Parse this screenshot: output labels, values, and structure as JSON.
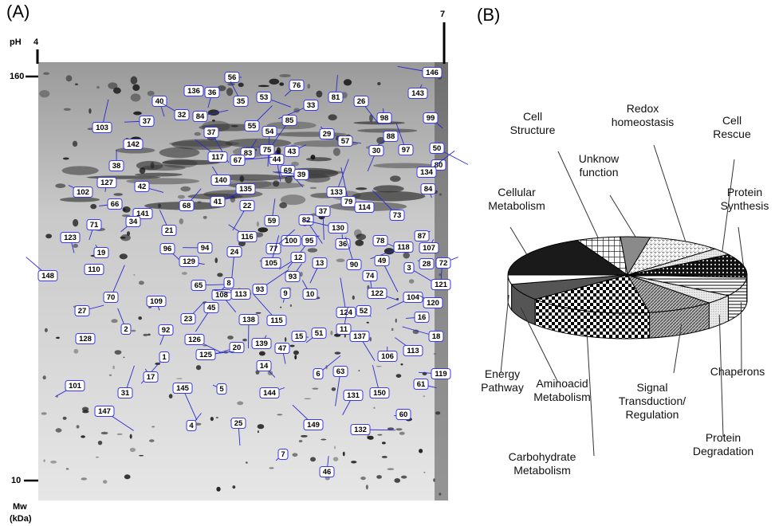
{
  "panel_a": {
    "label": "(A)",
    "ph_label": "pH",
    "ph_start": 4,
    "ph_end": 7,
    "mw_top": 160,
    "mw_bottom": 10,
    "mw_label": "Mw",
    "mw_unit": "(kDa)",
    "spots": [
      56,
      76,
      81,
      26,
      146,
      136,
      36,
      35,
      53,
      33,
      143,
      40,
      32,
      84,
      85,
      98,
      99,
      37,
      55,
      54,
      29,
      57,
      88,
      103,
      37,
      75,
      43,
      30,
      97,
      50,
      142,
      83,
      44,
      117,
      67,
      80,
      38,
      69,
      39,
      134,
      127,
      140,
      42,
      135,
      133,
      84,
      102,
      41,
      22,
      79,
      114,
      66,
      68,
      37,
      73,
      141,
      34,
      59,
      82,
      130,
      87,
      71,
      21,
      78,
      118,
      107,
      123,
      116,
      100,
      95,
      36,
      96,
      94,
      77,
      24,
      19,
      129,
      12,
      105,
      49,
      28,
      72,
      13,
      90,
      3,
      110,
      93,
      74,
      148,
      65,
      8,
      121,
      108,
      113,
      93,
      9,
      10,
      122,
      104,
      70,
      109,
      120,
      27,
      45,
      124,
      52,
      16,
      23,
      138,
      115,
      15,
      51,
      11,
      137,
      18,
      128,
      92,
      2,
      126,
      20,
      139,
      47,
      113,
      125,
      1,
      106,
      14,
      119,
      6,
      63,
      17,
      61,
      101,
      31,
      145,
      5,
      144,
      131,
      150,
      147,
      60,
      4,
      25,
      149,
      132,
      7,
      46
    ]
  },
  "chart_data": {
    "type": "pie",
    "label": "(B)",
    "categories": [
      "Cell Structure",
      "Unknow function",
      "Redox homeostasis",
      "Cell Rescue",
      "Protein Synthesis",
      "Chaperons",
      "Protein Degradation",
      "Signal Transduction/ Regulation",
      "Carbohydrate Metabolism",
      "Aminoacid Metabolism",
      "Energy Pathway",
      "Cellular Metabolism"
    ],
    "values": [
      6,
      4,
      10,
      3,
      10,
      8,
      4,
      9,
      17,
      7,
      4,
      18
    ],
    "colors": [
      "#ffffff",
      "#8a8a8a",
      "#ffffff",
      "#d8d8d8",
      "#111111",
      "#ffffff",
      "#ffffff",
      "#ffffff",
      "#ffffff",
      "#555555",
      "#ffffff",
      "#1a1a1a"
    ]
  }
}
